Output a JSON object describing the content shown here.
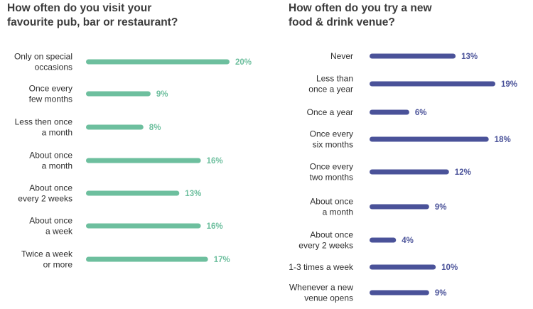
{
  "chart_data": [
    {
      "type": "bar",
      "orientation": "horizontal",
      "title_lines": [
        "How often do you visit your",
        "favourite pub, bar or restaurant?"
      ],
      "categories": [
        [
          "Only on special",
          "occasions"
        ],
        [
          "Once every",
          "few months"
        ],
        [
          "Less then once",
          "a month"
        ],
        [
          "About once",
          "a month"
        ],
        [
          "About once",
          "every 2 weeks"
        ],
        [
          "About once",
          "a week"
        ],
        [
          "Twice a week",
          "or more"
        ]
      ],
      "values": [
        20,
        9,
        8,
        16,
        13,
        16,
        17
      ],
      "value_labels": [
        "20%",
        "9%",
        "8%",
        "16%",
        "13%",
        "16%",
        "17%"
      ],
      "unit": "%",
      "color": "#6dbf9e",
      "xlim": [
        0,
        20
      ],
      "grid": false
    },
    {
      "type": "bar",
      "orientation": "horizontal",
      "title_lines": [
        "How often do you try a new",
        "food & drink venue?"
      ],
      "categories": [
        [
          "Never"
        ],
        [
          "Less than",
          "once a year"
        ],
        [
          "Once a year"
        ],
        [
          "Once every",
          "six months"
        ],
        [
          "Once every",
          "two months"
        ],
        [
          "About once",
          "a month"
        ],
        [
          "About once",
          "every 2 weeks"
        ],
        [
          "1-3 times a week"
        ],
        [
          "Whenever a new",
          "venue opens"
        ]
      ],
      "values": [
        13,
        19,
        6,
        18,
        12,
        9,
        4,
        10,
        9
      ],
      "value_labels": [
        "13%",
        "19%",
        "6%",
        "18%",
        "12%",
        "9%",
        "4%",
        "10%",
        "9%"
      ],
      "unit": "%",
      "color": "#4a5299",
      "xlim": [
        0,
        19
      ],
      "grid": false
    }
  ]
}
